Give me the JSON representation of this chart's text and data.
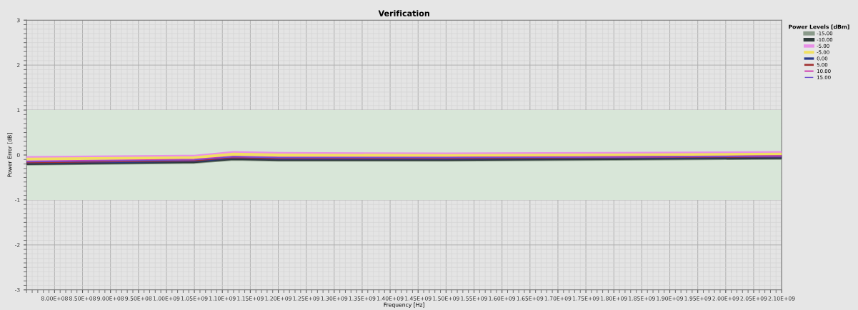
{
  "chart_data": {
    "type": "line",
    "title": "Verification",
    "xlabel": "Frequency [Hz]",
    "ylabel": "Power Error [dB]",
    "legend_title": "Power Levels [dBm]",
    "x": [
      750000000,
      1050000000,
      1120000000,
      1200000000,
      1500000000,
      1800000000,
      2100000000
    ],
    "series": [
      {
        "name": "-15.00",
        "color": "#8a9a8a",
        "values": [
          -0.19,
          -0.15,
          -0.08,
          -0.1,
          -0.1,
          -0.08,
          -0.06
        ]
      },
      {
        "name": "-10.00",
        "color": "#2f3b3b",
        "values": [
          -0.18,
          -0.14,
          -0.07,
          -0.09,
          -0.09,
          -0.07,
          -0.05
        ]
      },
      {
        "name": "-5.00",
        "color": "#e890e8",
        "values": [
          -0.06,
          -0.03,
          0.05,
          0.03,
          0.02,
          0.03,
          0.05
        ]
      },
      {
        "name": "-5.00",
        "color": "#f0e060",
        "values": [
          -0.09,
          -0.06,
          0.02,
          0.0,
          -0.01,
          0.0,
          0.02
        ]
      },
      {
        "name": "0.00",
        "color": "#2a3a8a",
        "values": [
          -0.17,
          -0.13,
          -0.06,
          -0.08,
          -0.08,
          -0.06,
          -0.04
        ]
      },
      {
        "name": "5.00",
        "color": "#a03030",
        "values": [
          -0.16,
          -0.12,
          -0.05,
          -0.07,
          -0.07,
          -0.05,
          -0.03
        ]
      },
      {
        "name": "10.00",
        "color": "#d040b0",
        "values": [
          -0.14,
          -0.1,
          -0.03,
          -0.05,
          -0.05,
          -0.04,
          -0.02
        ]
      },
      {
        "name": "15.00",
        "color": "#7050d0",
        "values": [
          -0.15,
          -0.11,
          -0.04,
          -0.06,
          -0.06,
          -0.05,
          -0.03
        ]
      }
    ],
    "xlim": [
      750000000,
      2100000000
    ],
    "xticks": [
      {
        "value": 800000000,
        "label": "8.00E+08"
      },
      {
        "value": 850000000,
        "label": "8.50E+08"
      },
      {
        "value": 900000000,
        "label": "9.00E+08"
      },
      {
        "value": 950000000,
        "label": "9.50E+08"
      },
      {
        "value": 1000000000,
        "label": "1.00E+09"
      },
      {
        "value": 1050000000,
        "label": "1.05E+09"
      },
      {
        "value": 1100000000,
        "label": "1.10E+09"
      },
      {
        "value": 1150000000,
        "label": "1.15E+09"
      },
      {
        "value": 1200000000,
        "label": "1.20E+09"
      },
      {
        "value": 1250000000,
        "label": "1.25E+09"
      },
      {
        "value": 1300000000,
        "label": "1.30E+09"
      },
      {
        "value": 1350000000,
        "label": "1.35E+09"
      },
      {
        "value": 1400000000,
        "label": "1.40E+09"
      },
      {
        "value": 1450000000,
        "label": "1.45E+09"
      },
      {
        "value": 1500000000,
        "label": "1.50E+09"
      },
      {
        "value": 1550000000,
        "label": "1.55E+09"
      },
      {
        "value": 1600000000,
        "label": "1.60E+09"
      },
      {
        "value": 1650000000,
        "label": "1.65E+09"
      },
      {
        "value": 1700000000,
        "label": "1.70E+09"
      },
      {
        "value": 1750000000,
        "label": "1.75E+09"
      },
      {
        "value": 1800000000,
        "label": "1.80E+09"
      },
      {
        "value": 1850000000,
        "label": "1.85E+09"
      },
      {
        "value": 1900000000,
        "label": "1.90E+09"
      },
      {
        "value": 1950000000,
        "label": "1.95E+09"
      },
      {
        "value": 2000000000,
        "label": "2.00E+09"
      },
      {
        "value": 2050000000,
        "label": "2.05E+09"
      },
      {
        "value": 2100000000,
        "label": "2.10E+09"
      }
    ],
    "ylim": [
      -3,
      3
    ],
    "yticks": [
      -3,
      -2,
      -1,
      0,
      1,
      2,
      3
    ],
    "bands": [
      {
        "axis": "y",
        "from": -1,
        "to": 1,
        "color": "#d8e6d8"
      }
    ],
    "grid": true,
    "legend": "right",
    "marker": "none",
    "line_style": "solid"
  }
}
